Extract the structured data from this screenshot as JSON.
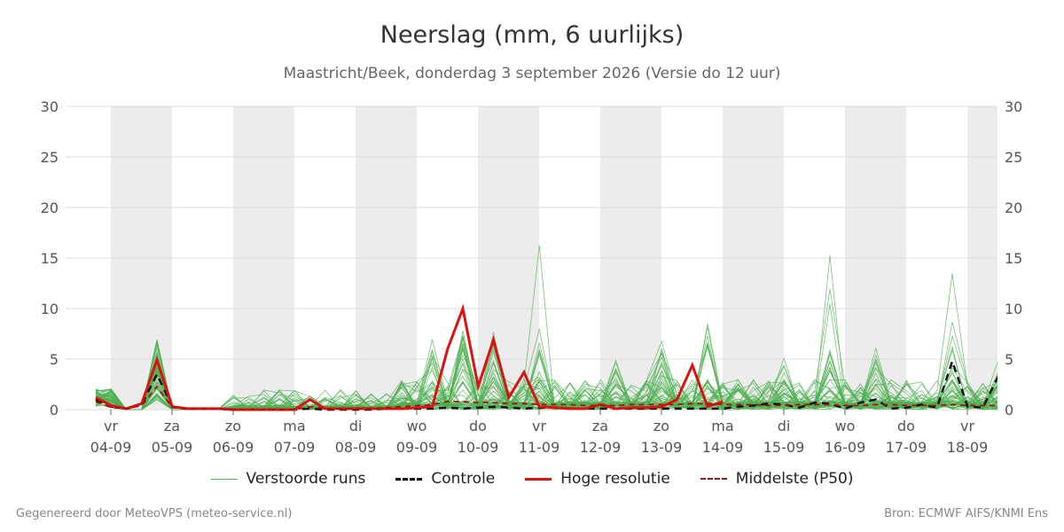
{
  "title": "Neerslag (mm, 6 uurlijks)",
  "subtitle": "Maastricht/Beek, donderdag  3 september 2026 (Versie do 12 uur)",
  "footer_left": "Gegenereerd door MeteoVPS (meteo-service.nl)",
  "footer_right": "Bron: ECMWF AIFS/KNMI Ens",
  "colors": {
    "ensemble": "#4caf50",
    "control": "#111111",
    "highres": "#dd1111",
    "median": "#aa1111",
    "weekend_band": "#ececec",
    "grid": "#dddddd"
  },
  "chart_data": {
    "type": "line",
    "ylim": [
      0,
      30
    ],
    "yticks": [
      0,
      5,
      10,
      15,
      20,
      25,
      30
    ],
    "x_ticks": [
      {
        "day": "vr",
        "date": "04-09"
      },
      {
        "day": "za",
        "date": "05-09"
      },
      {
        "day": "zo",
        "date": "06-09"
      },
      {
        "day": "ma",
        "date": "07-09"
      },
      {
        "day": "di",
        "date": "08-09"
      },
      {
        "day": "wo",
        "date": "09-09"
      },
      {
        "day": "do",
        "date": "10-09"
      },
      {
        "day": "vr",
        "date": "11-09"
      },
      {
        "day": "za",
        "date": "12-09"
      },
      {
        "day": "zo",
        "date": "13-09"
      },
      {
        "day": "ma",
        "date": "14-09"
      },
      {
        "day": "di",
        "date": "15-09"
      },
      {
        "day": "wo",
        "date": "16-09"
      },
      {
        "day": "do",
        "date": "17-09"
      },
      {
        "day": "vr",
        "date": "18-09"
      }
    ],
    "legend": [
      {
        "label": "Verstoorde runs",
        "style": "thin-solid",
        "color_key": "ensemble"
      },
      {
        "label": "Controle",
        "style": "dashed",
        "color_key": "control"
      },
      {
        "label": "Hoge resolutie",
        "style": "thick-solid",
        "color_key": "highres"
      },
      {
        "label": "Middelste (P50)",
        "style": "dashed",
        "color_key": "median"
      }
    ],
    "series": [
      {
        "kind": "control",
        "values": [
          1.0,
          0.3,
          0.1,
          0.5,
          3.5,
          0.3,
          0.1,
          0.1,
          0.1,
          0.0,
          0.0,
          0.0,
          0.0,
          0.0,
          0.1,
          0.0,
          0.0,
          0.0,
          0.0,
          0.1,
          0.1,
          0.1,
          0.1,
          0.2,
          0.1,
          0.2,
          0.3,
          0.2,
          0.1,
          0.2,
          0.2,
          0.1,
          0.1,
          0.1,
          0.1,
          0.1,
          0.1,
          0.1,
          0.1,
          0.1,
          0.1,
          0.1,
          0.3,
          0.4,
          0.6,
          0.5,
          0.2,
          0.7,
          0.6,
          0.1,
          0.7,
          1.0,
          0.1,
          0.2,
          0.5,
          0.2,
          4.8,
          0.3,
          0.2,
          3.3,
          0.1,
          2.5,
          1.4,
          0.3,
          0.2,
          0.4
        ]
      },
      {
        "kind": "highres",
        "values": [
          1.2,
          0.4,
          0.1,
          0.6,
          4.9,
          0.3,
          0.1,
          0.1,
          0.1,
          0.0,
          0.0,
          0.0,
          0.0,
          0.0,
          1.0,
          0.1,
          0.1,
          0.1,
          0.1,
          0.1,
          0.1,
          0.2,
          0.3,
          6.0,
          10.0,
          2.3,
          6.9,
          1.2,
          3.7,
          0.3,
          0.2,
          0.1,
          0.1,
          0.5,
          0.1,
          0.2,
          0.2,
          0.3,
          1.0,
          4.4,
          0.3,
          0.8
        ]
      },
      {
        "kind": "median",
        "values": [
          0.8,
          0.2,
          0.1,
          0.4,
          2.3,
          0.2,
          0.1,
          0.1,
          0.1,
          0.0,
          0.0,
          0.0,
          0.0,
          0.0,
          0.3,
          0.1,
          0.1,
          0.1,
          0.1,
          0.2,
          0.3,
          0.4,
          0.5,
          0.8,
          0.8,
          0.7,
          0.7,
          0.6,
          0.6,
          0.5,
          0.5,
          0.5,
          0.4,
          0.4,
          0.4,
          0.5,
          0.5,
          0.5,
          0.5,
          0.6,
          0.6,
          0.5,
          0.5,
          0.5,
          0.4,
          0.4,
          0.5,
          0.5,
          0.5,
          0.4,
          0.4,
          0.5,
          0.5,
          0.4,
          0.4,
          0.4,
          0.5,
          0.4,
          0.4,
          0.4,
          0.4,
          0.4,
          0.4,
          0.4,
          0.4,
          0.4
        ]
      }
    ],
    "ensemble_members": 50
  }
}
